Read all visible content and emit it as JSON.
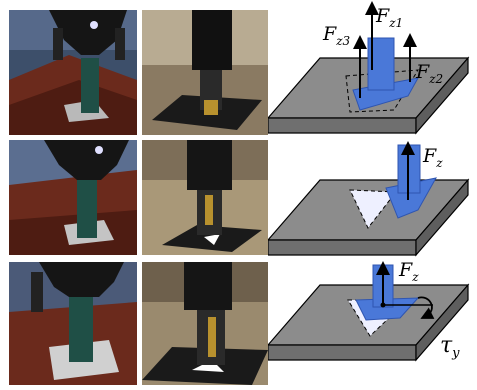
{
  "figure": {
    "diagrams": [
      {
        "id": "three-contact",
        "forces": [
          {
            "symbol": "F",
            "subscript": "z1"
          },
          {
            "symbol": "F",
            "subscript": "z2"
          },
          {
            "symbol": "F",
            "subscript": "z3"
          }
        ]
      },
      {
        "id": "edge-contact",
        "forces": [
          {
            "symbol": "F",
            "subscript": "z"
          }
        ]
      },
      {
        "id": "torque-contact",
        "forces": [
          {
            "symbol": "F",
            "subscript": "z"
          }
        ],
        "torque": {
          "symbol": "τ",
          "subscript": "y"
        }
      }
    ],
    "colors": {
      "board_top": "#8c8c8c",
      "board_side": "#6f6f6f",
      "peg": "#4a78d8",
      "peg_dark": "#2f55b0",
      "sim_table": "#6b2a1c",
      "sim_peg": "#1f4f46",
      "real_board": "#1a1a1a",
      "real_brass": "#b8912e"
    }
  }
}
